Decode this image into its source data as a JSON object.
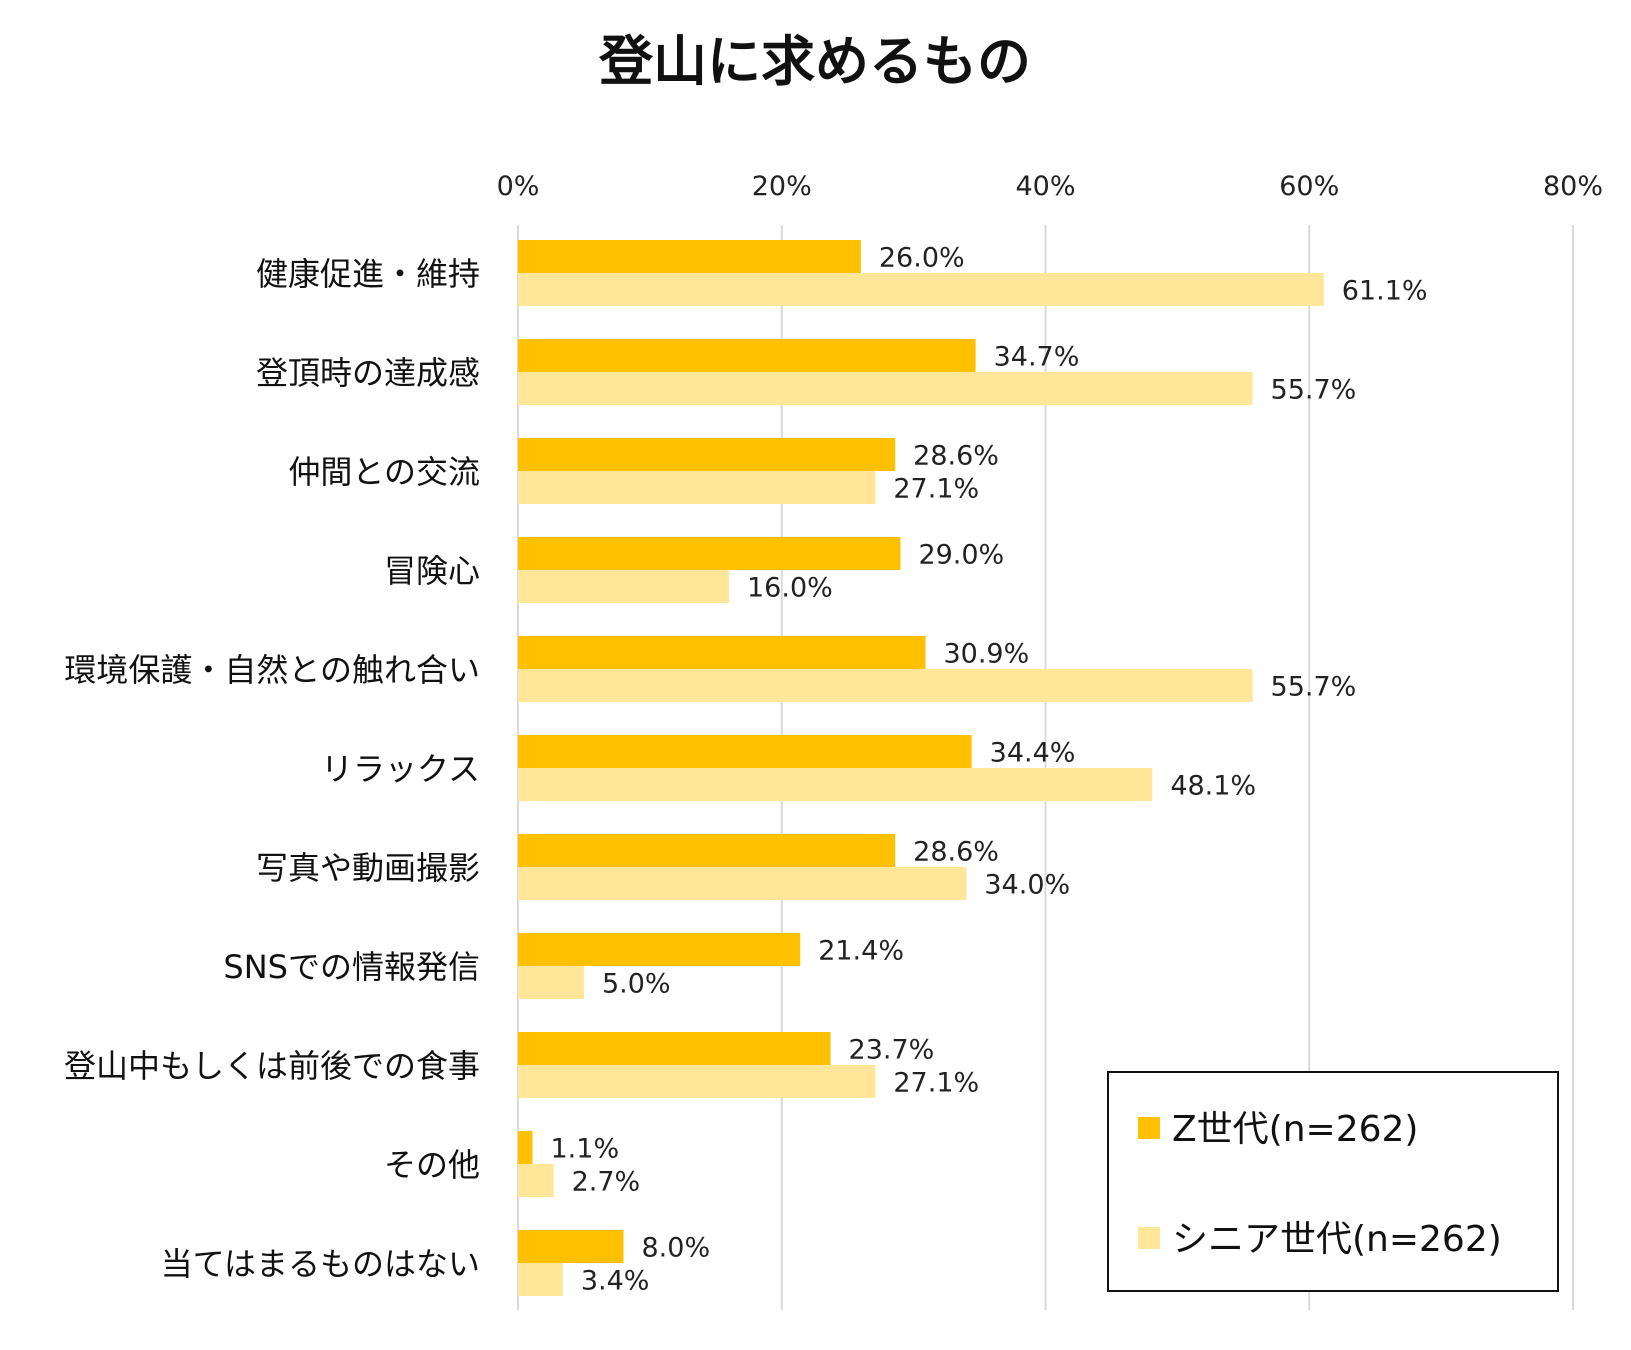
{
  "chart_data": {
    "type": "bar",
    "orientation": "horizontal",
    "title": "登山に求めるもの",
    "xlim": [
      0,
      80
    ],
    "x_ticks": [
      0,
      20,
      40,
      60,
      80
    ],
    "x_tick_labels": [
      "0%",
      "20%",
      "40%",
      "60%",
      "80%"
    ],
    "grid": true,
    "legend_position": "bottom-right",
    "categories": [
      "健康促進・維持",
      "登頂時の達成感",
      "仲間との交流",
      "冒険心",
      "環境保護・自然との触れ合い",
      "リラックス",
      "写真や動画撮影",
      "SNSでの情報発信",
      "登山中もしくは前後での食事",
      "その他",
      "当てはまるものはない"
    ],
    "series": [
      {
        "name": "Z世代(n=262)",
        "color": "#FFC000",
        "values": [
          26.0,
          34.7,
          28.6,
          29.0,
          30.9,
          34.4,
          28.6,
          21.4,
          23.7,
          1.1,
          8.0
        ],
        "labels": [
          "26.0%",
          "34.7%",
          "28.6%",
          "29.0%",
          "30.9%",
          "34.4%",
          "28.6%",
          "21.4%",
          "23.7%",
          "1.1%",
          "8.0%"
        ]
      },
      {
        "name": "シニア世代(n=262)",
        "color": "#FFE699",
        "values": [
          61.1,
          55.7,
          27.1,
          16.0,
          55.7,
          48.1,
          34.0,
          5.0,
          27.1,
          2.7,
          3.4
        ],
        "labels": [
          "61.1%",
          "55.7%",
          "27.1%",
          "16.0%",
          "55.7%",
          "48.1%",
          "34.0%",
          "5.0%",
          "27.1%",
          "2.7%",
          "3.4%"
        ]
      }
    ]
  }
}
